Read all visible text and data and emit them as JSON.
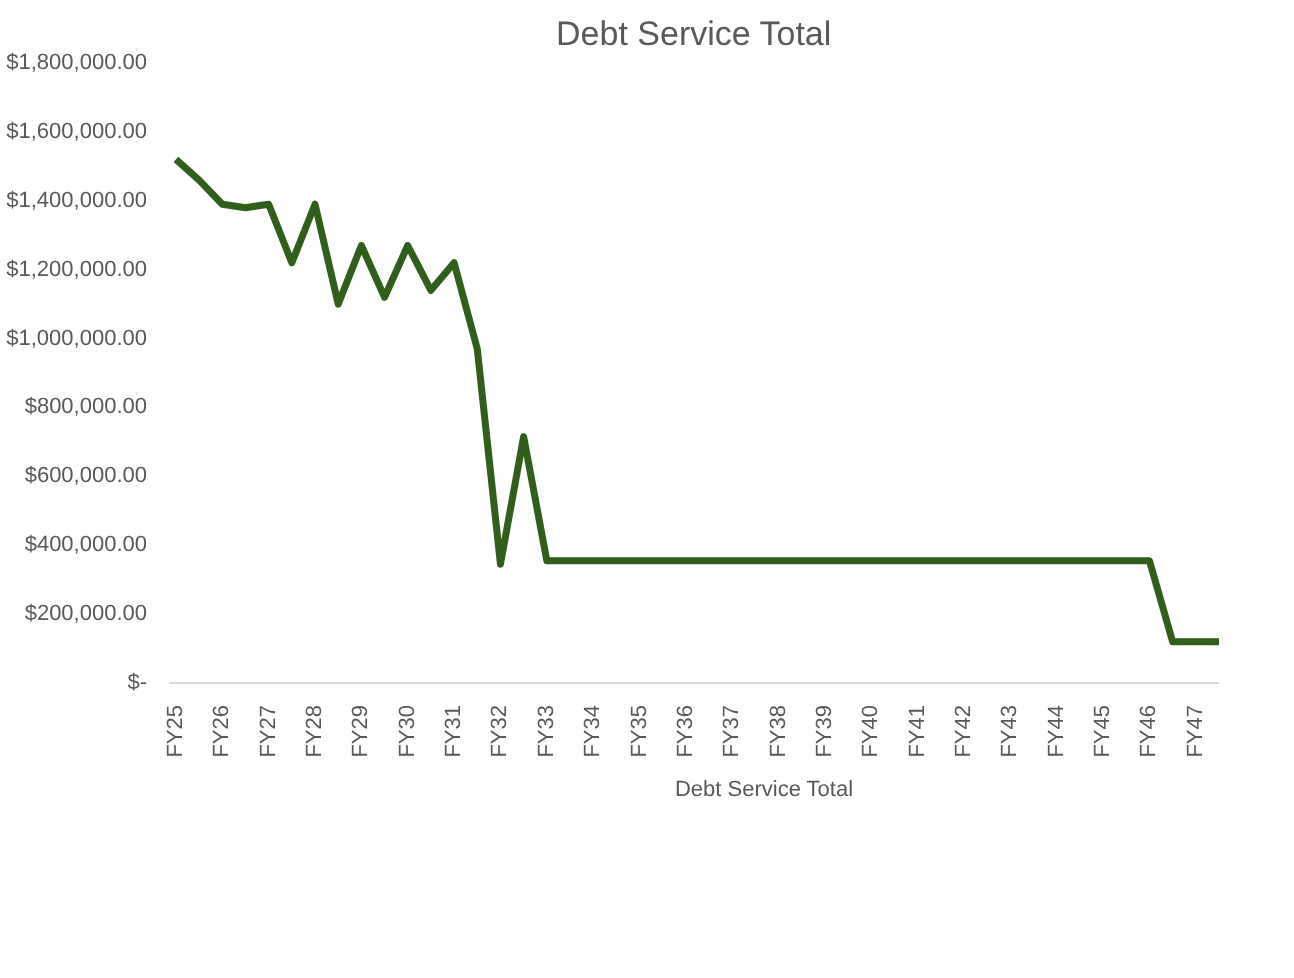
{
  "chart_data": {
    "type": "line",
    "title": "Debt Service Total",
    "categories": [
      "FY25",
      null,
      "FY26",
      null,
      "FY27",
      null,
      "FY28",
      null,
      "FY29",
      null,
      "FY30",
      null,
      "FY31",
      null,
      "FY32",
      null,
      "FY33",
      null,
      "FY34",
      null,
      "FY35",
      null,
      "FY36",
      null,
      "FY37",
      null,
      "FY38",
      null,
      "FY39",
      null,
      "FY40",
      null,
      "FY41",
      null,
      "FY42",
      null,
      "FY43",
      null,
      "FY44",
      null,
      "FY45",
      null,
      "FY46",
      null,
      "FY47",
      null
    ],
    "series": [
      {
        "name": "Debt Service Total",
        "color": "#2f5f1a",
        "values": [
          1520000,
          1460000,
          1390000,
          1380000,
          1390000,
          1220000,
          1390000,
          1100000,
          1270000,
          1120000,
          1270000,
          1140000,
          1220000,
          970000,
          345000,
          715000,
          355000,
          355000,
          355000,
          355000,
          355000,
          355000,
          355000,
          355000,
          355000,
          355000,
          355000,
          355000,
          355000,
          355000,
          355000,
          355000,
          355000,
          355000,
          355000,
          355000,
          355000,
          355000,
          355000,
          355000,
          355000,
          355000,
          355000,
          120000,
          120000,
          120000
        ]
      }
    ],
    "ylim": [
      0,
      1800000
    ],
    "yticks": [
      {
        "value": 0,
        "label": "$-"
      },
      {
        "value": 200000,
        "label": "$200,000.00"
      },
      {
        "value": 400000,
        "label": "$400,000.00"
      },
      {
        "value": 600000,
        "label": "$600,000.00"
      },
      {
        "value": 800000,
        "label": "$800,000.00"
      },
      {
        "value": 1000000,
        "label": "$1,000,000.00"
      },
      {
        "value": 1200000,
        "label": "$1,200,000.00"
      },
      {
        "value": 1400000,
        "label": "$1,400,000.00"
      },
      {
        "value": 1600000,
        "label": "$1,600,000.00"
      },
      {
        "value": 1800000,
        "label": "$1,800,000.00"
      }
    ],
    "grid": false,
    "legend": "bottom",
    "marker": "none",
    "line_style": "solid"
  }
}
